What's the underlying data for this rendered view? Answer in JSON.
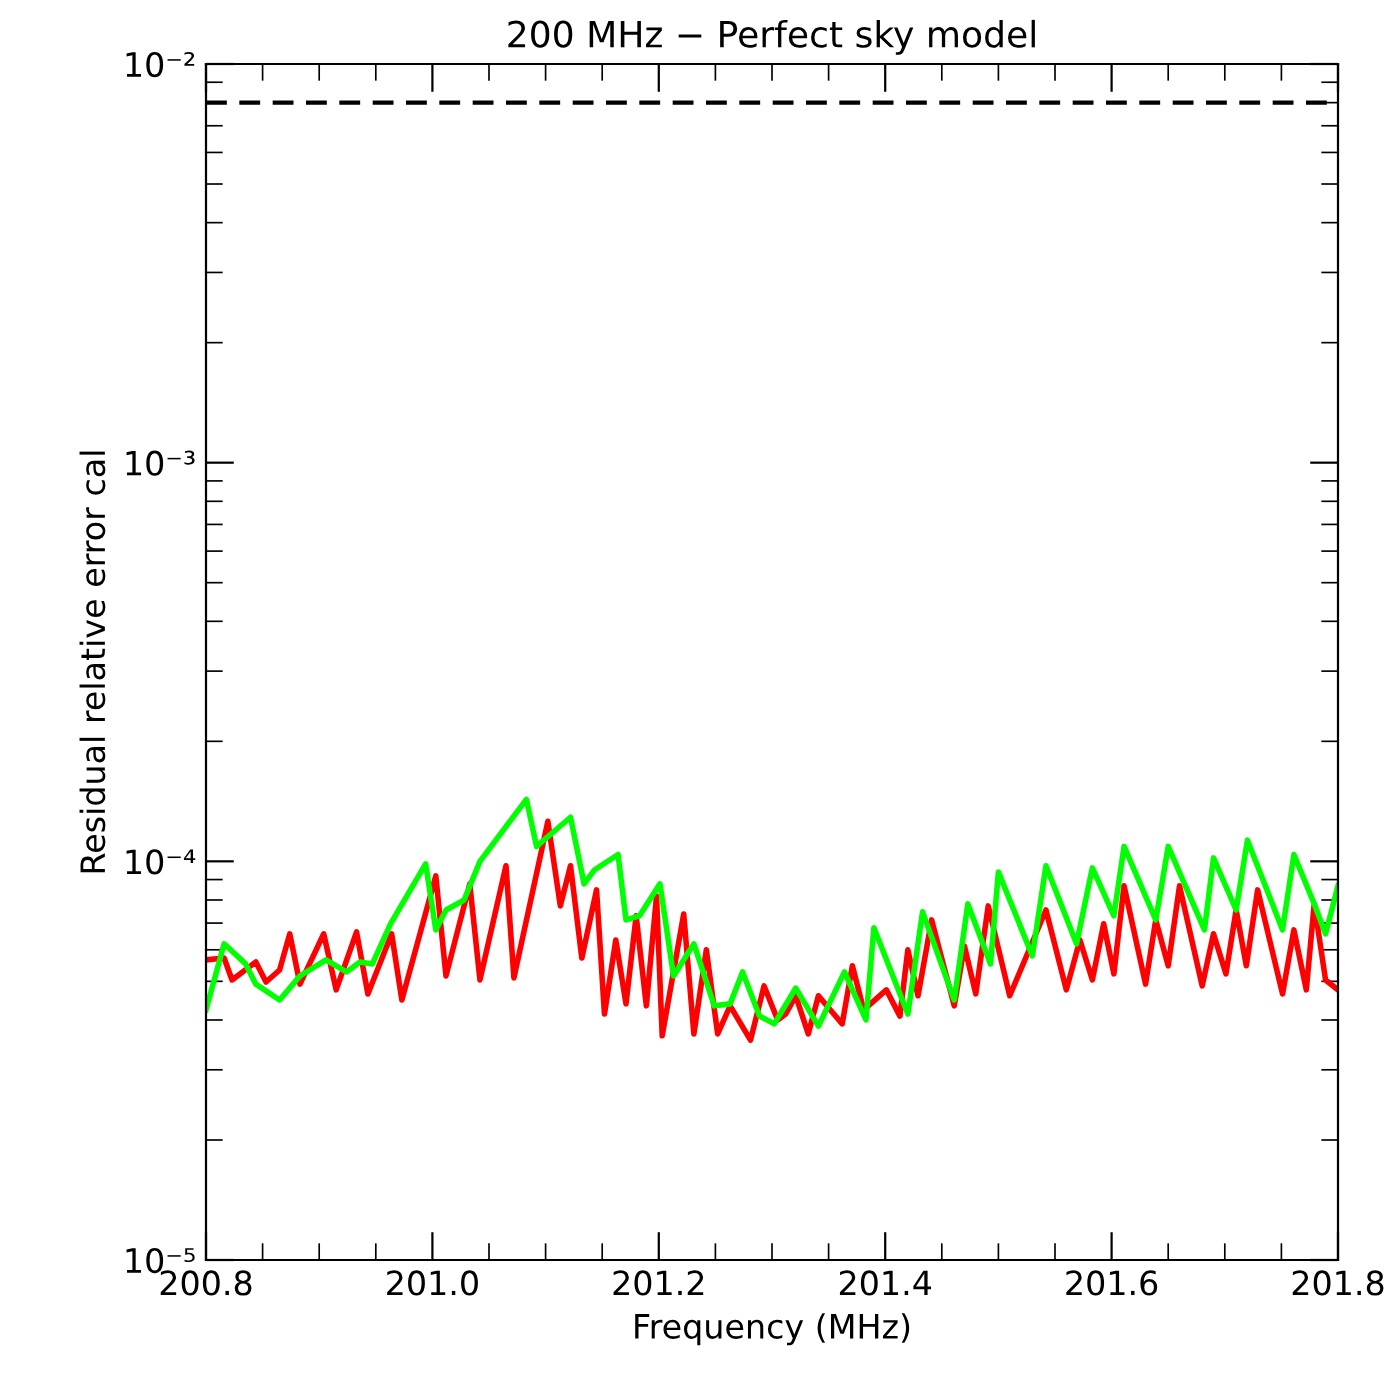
{
  "chart_data": {
    "type": "line",
    "title": "200 MHz − Perfect sky model",
    "xlabel": "Frequency (MHz)",
    "ylabel": "Residual relative error cal",
    "log": "y",
    "grid": false,
    "legend": false,
    "marker": "none",
    "line_style": "solid",
    "xlim": [
      200.8,
      201.8
    ],
    "ylim": [
      1e-05,
      0.01
    ],
    "xticks": [
      {
        "value": 200.8,
        "label": "200.8"
      },
      {
        "value": 201.0,
        "label": "201.0"
      },
      {
        "value": 201.2,
        "label": "201.2"
      },
      {
        "value": 201.4,
        "label": "201.4"
      },
      {
        "value": 201.6,
        "label": "201.6"
      },
      {
        "value": 201.8,
        "label": "201.8"
      }
    ],
    "yticks": [
      {
        "value": 1e-05,
        "label": "10⁻⁵"
      },
      {
        "value": 0.0001,
        "label": "10⁻⁴"
      },
      {
        "value": 0.001,
        "label": "10⁻³"
      },
      {
        "value": 0.01,
        "label": "10⁻²"
      }
    ],
    "ref_lines": [
      {
        "axis": "y",
        "value": 0.008,
        "label": null,
        "color": "#000000",
        "line_style": "dashed"
      }
    ],
    "series": [
      {
        "color": "#ff0000",
        "x": [
          200.8,
          200.816,
          200.823,
          200.844,
          200.853,
          200.865,
          200.874,
          200.883,
          200.904,
          200.915,
          200.933,
          200.943,
          200.964,
          200.973,
          201.003,
          201.012,
          201.033,
          201.042,
          201.065,
          201.072,
          201.102,
          201.113,
          201.122,
          201.132,
          201.145,
          201.152,
          201.162,
          201.171,
          201.18,
          201.189,
          201.198,
          201.203,
          201.222,
          201.231,
          201.242,
          201.252,
          201.263,
          201.281,
          201.293,
          201.305,
          201.312,
          201.321,
          201.332,
          201.341,
          201.362,
          201.371,
          201.381,
          201.401,
          201.413,
          201.42,
          201.429,
          201.441,
          201.461,
          201.47,
          201.48,
          201.491,
          201.51,
          201.542,
          201.56,
          201.572,
          201.583,
          201.593,
          201.602,
          201.611,
          201.63,
          201.639,
          201.65,
          201.66,
          201.68,
          201.69,
          201.701,
          201.71,
          201.719,
          201.729,
          201.751,
          201.761,
          201.772,
          201.779,
          201.789,
          201.8
        ],
        "values": [
          5.66e-05,
          5.72e-05,
          5.04e-05,
          5.59e-05,
          4.98e-05,
          5.34e-05,
          6.58e-05,
          4.92e-05,
          6.58e-05,
          4.76e-05,
          6.65e-05,
          4.65e-05,
          6.58e-05,
          4.49e-05,
          9.19e-05,
          5.16e-05,
          8.78e-05,
          5.04e-05,
          9.75e-05,
          5.1e-05,
          0.000126,
          7.73e-05,
          9.75e-05,
          5.72e-05,
          8.48e-05,
          4.14e-05,
          6.35e-05,
          4.39e-05,
          7.3e-05,
          4.34e-05,
          8.19e-05,
          3.65e-05,
          7.38e-05,
          3.69e-05,
          6e-05,
          3.69e-05,
          4.34e-05,
          3.56e-05,
          4.87e-05,
          4e-05,
          4.14e-05,
          4.6e-05,
          3.69e-05,
          4.6e-05,
          3.91e-05,
          5.47e-05,
          4.24e-05,
          4.76e-05,
          4.09e-05,
          6e-05,
          4.6e-05,
          7.13e-05,
          4.34e-05,
          6.13e-05,
          4.65e-05,
          7.73e-05,
          4.6e-05,
          7.55e-05,
          4.76e-05,
          6.35e-05,
          5.04e-05,
          6.97e-05,
          5.22e-05,
          8.68e-05,
          4.92e-05,
          7.13e-05,
          5.47e-05,
          8.68e-05,
          4.87e-05,
          6.58e-05,
          5.22e-05,
          7.55e-05,
          5.47e-05,
          8.48e-05,
          4.65e-05,
          6.73e-05,
          4.76e-05,
          7.82e-05,
          5.04e-05,
          4.76e-05
        ]
      },
      {
        "color": "#00ff00",
        "x": [
          200.8,
          200.816,
          200.835,
          200.844,
          200.865,
          200.883,
          200.906,
          200.924,
          200.936,
          200.947,
          200.963,
          200.994,
          201.003,
          201.012,
          201.028,
          201.042,
          201.083,
          201.092,
          201.122,
          201.134,
          201.143,
          201.164,
          201.171,
          201.183,
          201.201,
          201.213,
          201.231,
          201.249,
          201.263,
          201.274,
          201.289,
          201.302,
          201.321,
          201.341,
          201.364,
          201.383,
          201.39,
          201.42,
          201.433,
          201.461,
          201.473,
          201.493,
          201.5,
          201.53,
          201.542,
          201.569,
          201.583,
          201.602,
          201.611,
          201.639,
          201.65,
          201.682,
          201.69,
          201.71,
          201.72,
          201.751,
          201.761,
          201.779,
          201.789,
          201.8
        ],
        "values": [
          4.24e-05,
          6.21e-05,
          5.53e-05,
          4.92e-05,
          4.49e-05,
          5.16e-05,
          5.66e-05,
          5.28e-05,
          5.59e-05,
          5.53e-05,
          6.97e-05,
          9.85e-05,
          6.73e-05,
          7.55e-05,
          8e-05,
          0.0001,
          0.000143,
          0.000109,
          0.000129,
          8.78e-05,
          9.51e-05,
          0.000104,
          7.13e-05,
          7.3e-05,
          8.78e-05,
          5.16e-05,
          6.21e-05,
          4.34e-05,
          4.39e-05,
          5.28e-05,
          4.09e-05,
          3.91e-05,
          4.81e-05,
          3.86e-05,
          5.28e-05,
          4e-05,
          6.81e-05,
          4.14e-05,
          7.47e-05,
          4.49e-05,
          7.82e-05,
          5.53e-05,
          9.4e-05,
          5.79e-05,
          9.75e-05,
          6.21e-05,
          9.63e-05,
          7.3e-05,
          0.000109,
          7.13e-05,
          0.000109,
          6.73e-05,
          0.000102,
          7.55e-05,
          0.000113,
          6.73e-05,
          0.000104,
          7.82e-05,
          6.58e-05,
          8.68e-05
        ]
      }
    ]
  }
}
